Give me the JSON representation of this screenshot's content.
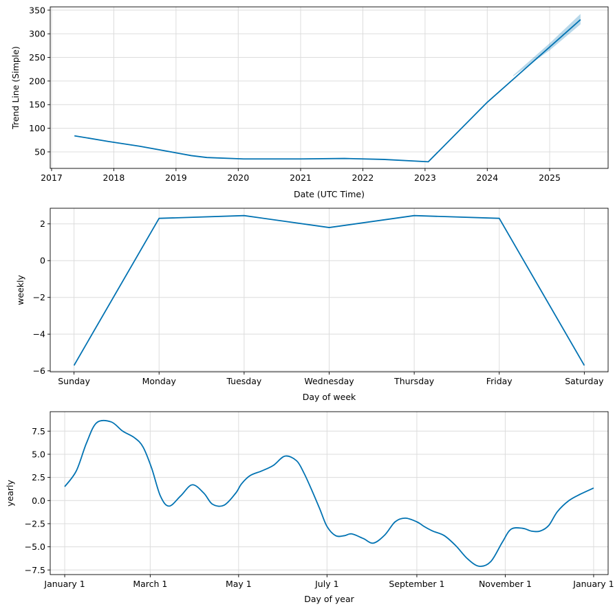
{
  "chart_data": [
    {
      "type": "line",
      "id": "trend",
      "xlabel": "Date (UTC Time)",
      "ylabel": "Trend Line (Simple)",
      "x_type": "date",
      "xlim": [
        "2016-12-24",
        "2025-12-10"
      ],
      "ylim": [
        15,
        357
      ],
      "xticks": [
        {
          "value": "2017-01-01",
          "label": "2017"
        },
        {
          "value": "2018-01-01",
          "label": "2018"
        },
        {
          "value": "2019-01-01",
          "label": "2019"
        },
        {
          "value": "2020-01-01",
          "label": "2020"
        },
        {
          "value": "2021-01-01",
          "label": "2021"
        },
        {
          "value": "2022-01-01",
          "label": "2022"
        },
        {
          "value": "2023-01-01",
          "label": "2023"
        },
        {
          "value": "2024-01-01",
          "label": "2024"
        },
        {
          "value": "2025-01-01",
          "label": "2025"
        }
      ],
      "yticks": [
        {
          "value": 50,
          "label": "50"
        },
        {
          "value": 100,
          "label": "100"
        },
        {
          "value": 150,
          "label": "150"
        },
        {
          "value": 200,
          "label": "200"
        },
        {
          "value": 250,
          "label": "250"
        },
        {
          "value": 300,
          "label": "300"
        },
        {
          "value": 350,
          "label": "350"
        }
      ],
      "grid": true,
      "series": [
        {
          "x": [
            "2017-05-15",
            "2017-12-01",
            "2018-06-01",
            "2019-01-01",
            "2019-04-01",
            "2019-07-01",
            "2020-02-01",
            "2021-01-01",
            "2021-09-15",
            "2022-05-01",
            "2023-01-20",
            "2024-01-01",
            "2025-01-01",
            "2025-07-01"
          ],
          "y": [
            84,
            72,
            62,
            48,
            42,
            38,
            35,
            35,
            36,
            34,
            29,
            155,
            272,
            330
          ],
          "band": {
            "x": [
              "2024-06-01",
              "2025-01-01",
              "2025-07-01"
            ],
            "lower": [
              210,
              265,
              320
            ],
            "upper": [
              212,
              280,
              342
            ]
          }
        }
      ]
    },
    {
      "type": "line",
      "id": "weekly",
      "xlabel": "Day of week",
      "ylabel": "weekly",
      "categories": [
        "Sunday",
        "Monday",
        "Tuesday",
        "Wednesday",
        "Thursday",
        "Friday",
        "Saturday"
      ],
      "ylim": [
        -6.05,
        2.85
      ],
      "yticks": [
        {
          "value": -6,
          "label": "−6"
        },
        {
          "value": -4,
          "label": "−4"
        },
        {
          "value": -2,
          "label": "−2"
        },
        {
          "value": 0,
          "label": "0"
        },
        {
          "value": 2,
          "label": "2"
        }
      ],
      "grid": true,
      "series": [
        {
          "values": [
            -5.7,
            2.3,
            2.45,
            1.8,
            2.45,
            2.3,
            -5.7
          ]
        }
      ]
    },
    {
      "type": "line",
      "id": "yearly",
      "xlabel": "Day of year",
      "ylabel": "yearly",
      "x_type": "day_of_year",
      "xlim": [
        -10,
        375
      ],
      "ylim": [
        -8.0,
        9.6
      ],
      "xticks": [
        {
          "value": 0,
          "label": "January 1"
        },
        {
          "value": 59,
          "label": "March 1"
        },
        {
          "value": 120,
          "label": "May 1"
        },
        {
          "value": 181,
          "label": "July 1"
        },
        {
          "value": 243,
          "label": "September 1"
        },
        {
          "value": 304,
          "label": "November 1"
        },
        {
          "value": 365,
          "label": "January 1"
        }
      ],
      "yticks": [
        {
          "value": -7.5,
          "label": "−7.5"
        },
        {
          "value": -5.0,
          "label": "−5.0"
        },
        {
          "value": -2.5,
          "label": "−2.5"
        },
        {
          "value": 0.0,
          "label": "0.0"
        },
        {
          "value": 2.5,
          "label": "2.5"
        },
        {
          "value": 5.0,
          "label": "5.0"
        },
        {
          "value": 7.5,
          "label": "7.5"
        }
      ],
      "grid": true,
      "series": [
        {
          "x": [
            0,
            8,
            15,
            22,
            32,
            40,
            48,
            54,
            60,
            66,
            72,
            80,
            88,
            96,
            102,
            110,
            118,
            122,
            128,
            136,
            144,
            152,
            160,
            165,
            170,
            176,
            181,
            187,
            193,
            198,
            206,
            213,
            221,
            228,
            235,
            243,
            248,
            254,
            262,
            270,
            278,
            286,
            294,
            302,
            308,
            316,
            322,
            328,
            334,
            340,
            348,
            356,
            365
          ],
          "y": [
            1.5,
            3.2,
            6.2,
            8.4,
            8.5,
            7.5,
            6.8,
            5.8,
            3.5,
            0.5,
            -0.6,
            0.5,
            1.7,
            0.8,
            -0.4,
            -0.5,
            0.8,
            1.8,
            2.7,
            3.2,
            3.8,
            4.8,
            4.3,
            3.0,
            1.3,
            -0.9,
            -2.8,
            -3.8,
            -3.8,
            -3.6,
            -4.1,
            -4.6,
            -3.7,
            -2.3,
            -1.9,
            -2.3,
            -2.8,
            -3.3,
            -3.8,
            -4.9,
            -6.3,
            -7.1,
            -6.6,
            -4.5,
            -3.1,
            -3.0,
            -3.3,
            -3.3,
            -2.7,
            -1.2,
            0.0,
            0.7,
            1.35
          ]
        }
      ]
    }
  ]
}
